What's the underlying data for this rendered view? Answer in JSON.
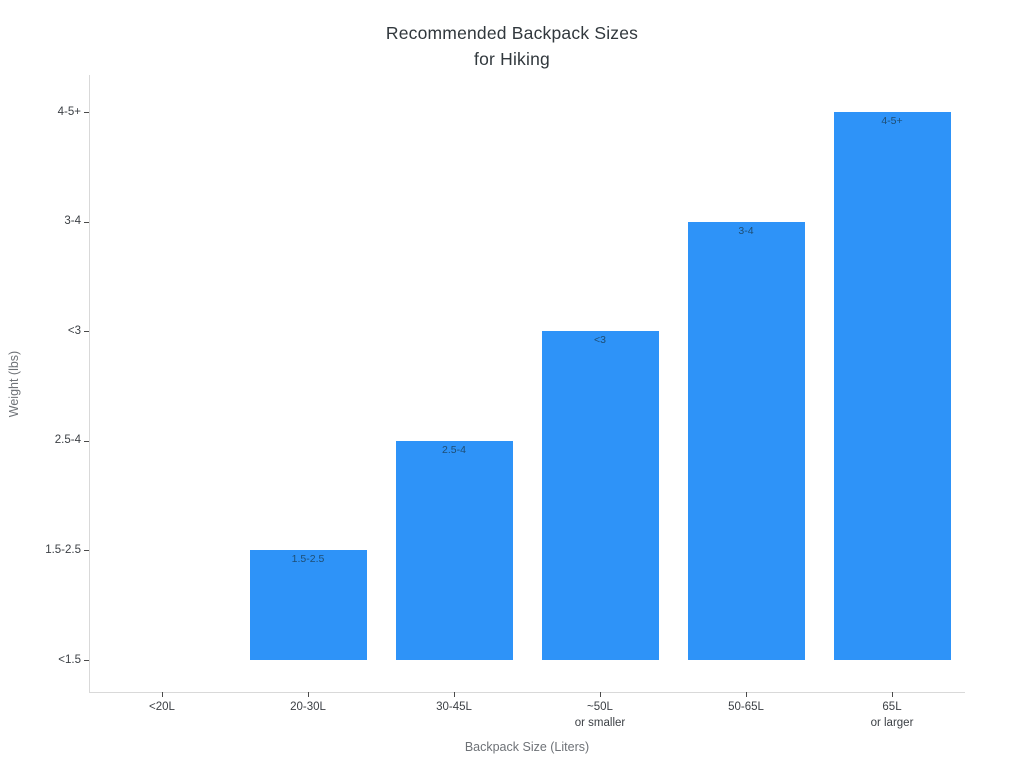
{
  "chart_data": {
    "type": "bar",
    "title": "Recommended Backpack Sizes for Hiking",
    "title_lines": [
      "Recommended Backpack Sizes",
      "for Hiking"
    ],
    "xlabel": "Backpack Size (Liters)",
    "ylabel": "Weight (lbs)",
    "categories": [
      [
        "<20L"
      ],
      [
        "20-30L"
      ],
      [
        "30-45L"
      ],
      [
        "~50L",
        "or smaller"
      ],
      [
        "50-65L"
      ],
      [
        "65L",
        "or larger"
      ]
    ],
    "categories_flat": [
      "<20L",
      "20-30L",
      "30-45L",
      "~50L or smaller",
      "50-65L",
      "65L or larger"
    ],
    "y_tick_labels": [
      "<1.5",
      "1.5-2.5",
      "2.5-4",
      "<3",
      "3-4",
      "4-5+"
    ],
    "values": [
      "<1.5",
      "1.5-2.5",
      "2.5-4",
      "<3",
      "3-4",
      "4-5+"
    ],
    "levels": [
      0,
      1,
      2,
      3,
      4,
      5
    ],
    "bar_labels": [
      "",
      "1.5-2.5",
      "2.5-4",
      "<3",
      "3-4",
      "4-5+"
    ],
    "grid": false,
    "legend": false,
    "y_axis_type": "category",
    "colors": {
      "bar": "#2e93f8",
      "bar_label": "#1e4e74",
      "axis_line": "#d9d9d9",
      "tick_mark": "#4a4a4a",
      "tick_label": "#3c4045",
      "axis_title": "#6e7277",
      "title": "#31383d",
      "background": "#ffffff"
    }
  }
}
